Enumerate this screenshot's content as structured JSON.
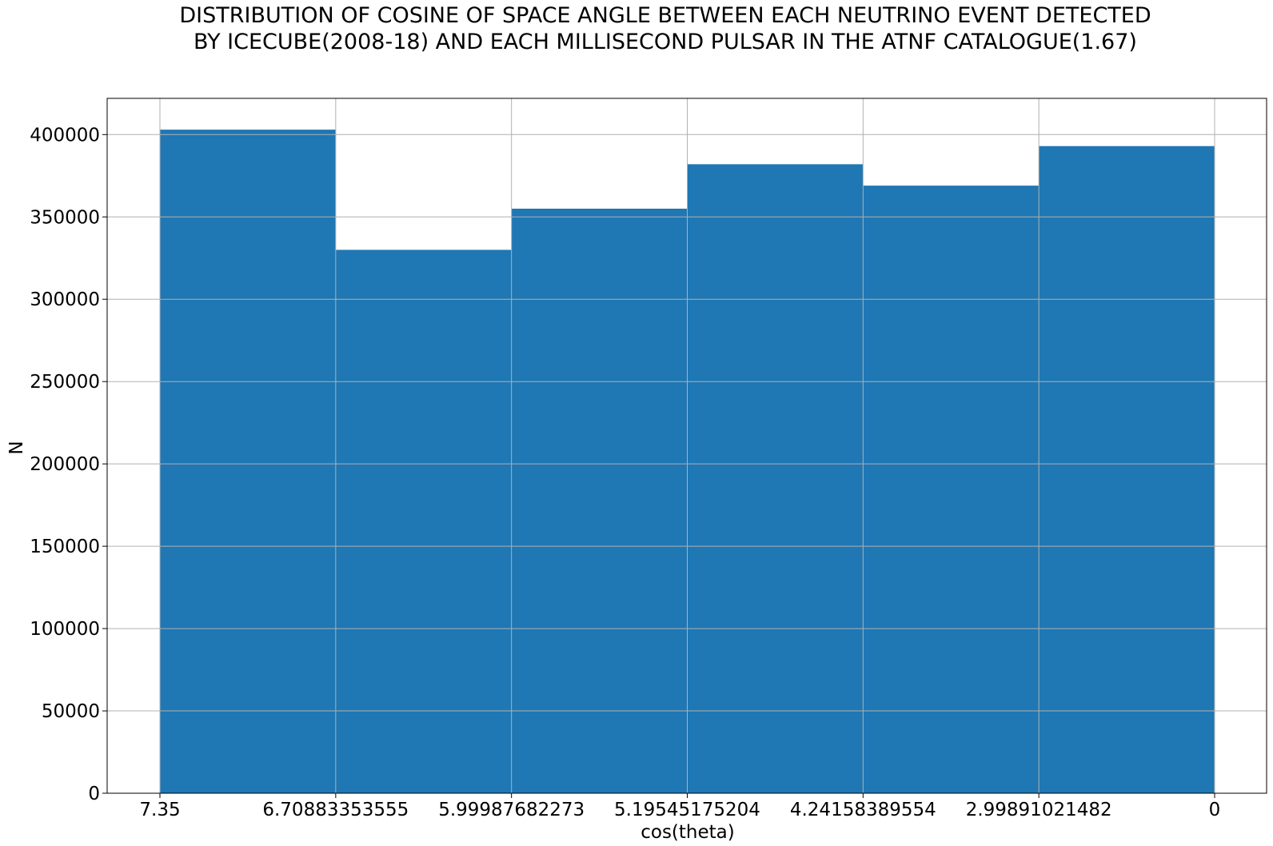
{
  "colors": {
    "bar_fill": "#1f77b4",
    "grid": "#b0b0b0",
    "background": "#ffffff"
  },
  "chart_data": {
    "type": "bar",
    "title": [
      "DISTRIBUTION OF COSINE OF SPACE ANGLE BETWEEN EACH NEUTRINO EVENT DETECTED",
      "BY ICECUBE(2008-18) AND EACH MILLISECOND PULSAR IN THE ATNF CATALOGUE(1.67)"
    ],
    "xlabel": "cos(theta)",
    "ylabel": "N",
    "x_tick_labels": [
      "7.35",
      "6.70883353555",
      "5.99987682273",
      "5.19545175204",
      "4.24158389554",
      "2.99891021482",
      "0"
    ],
    "bins": [
      {
        "from": "7.35",
        "to": "6.70883353555",
        "value": 403000
      },
      {
        "from": "6.70883353555",
        "to": "5.99987682273",
        "value": 330000
      },
      {
        "from": "5.99987682273",
        "to": "5.19545175204",
        "value": 355000
      },
      {
        "from": "5.19545175204",
        "to": "4.24158389554",
        "value": 382000
      },
      {
        "from": "4.24158389554",
        "to": "2.99891021482",
        "value": 369000
      },
      {
        "from": "2.99891021482",
        "to": "0",
        "value": 393000
      }
    ],
    "yticks": [
      0,
      50000,
      100000,
      150000,
      200000,
      250000,
      300000,
      350000,
      400000
    ],
    "ylim": [
      0,
      422000
    ],
    "grid": true,
    "legend": false
  }
}
